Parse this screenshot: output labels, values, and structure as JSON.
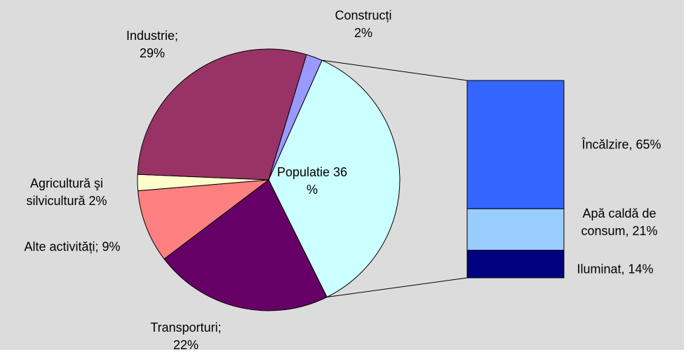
{
  "chart_data": {
    "type": "pie-of-bar",
    "pie": {
      "categories": [
        "Populatie",
        "Transporturi;",
        "Alte activități;",
        "Agricultură şi silvicultură",
        "Industrie;",
        "Construcți"
      ],
      "values": [
        36,
        22,
        9,
        2,
        29,
        2
      ],
      "value_labels": [
        "36 %",
        "22%",
        "9%",
        "2%",
        "29%",
        "2%"
      ],
      "colors": [
        "#ccffff",
        "#660066",
        "#ff8080",
        "#ffffcc",
        "#993366",
        "#9999ff"
      ]
    },
    "bar": {
      "categories": [
        "Încălzire,",
        "Apă caldă de consum,",
        "Iluminat,"
      ],
      "values": [
        65,
        21,
        14
      ],
      "value_labels": [
        "65%",
        "21%",
        "14%"
      ],
      "colors": [
        "#3366ff",
        "#99ccff",
        "#000080"
      ]
    }
  }
}
